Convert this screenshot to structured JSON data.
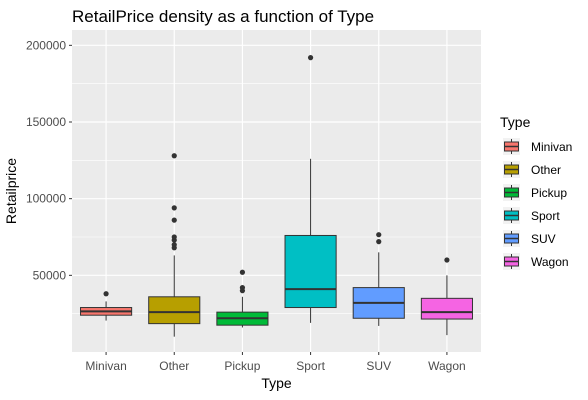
{
  "chart_data": {
    "type": "box",
    "title": "RetailPrice density as a function of Type",
    "xlabel": "Type",
    "ylabel": "Retailprice",
    "ylim": [
      0,
      210000
    ],
    "y_ticks": [
      50000,
      100000,
      150000,
      200000
    ],
    "categories": [
      "Minivan",
      "Other",
      "Pickup",
      "Sport",
      "SUV",
      "Wagon"
    ],
    "legend": {
      "title": "Type",
      "position": "right"
    },
    "colors": {
      "Minivan": "#F8766D",
      "Other": "#B79F00",
      "Pickup": "#00BA38",
      "Sport": "#00BFC4",
      "SUV": "#619CFF",
      "Wagon": "#F564E3"
    },
    "boxes": [
      {
        "name": "Minivan",
        "whisker_low": 20500,
        "q1": 24000,
        "median": 26500,
        "q3": 29000,
        "whisker_high": 33000,
        "outliers": [
          38000
        ]
      },
      {
        "name": "Other",
        "whisker_low": 10000,
        "q1": 18500,
        "median": 26000,
        "q3": 36000,
        "whisker_high": 63000,
        "outliers": [
          68000,
          70000,
          73000,
          75000,
          86000,
          94000,
          128000
        ]
      },
      {
        "name": "Pickup",
        "whisker_low": 16000,
        "q1": 17500,
        "median": 22000,
        "q3": 26000,
        "whisker_high": 36000,
        "outliers": [
          40000,
          42000,
          52000
        ]
      },
      {
        "name": "Sport",
        "whisker_low": 19000,
        "q1": 29000,
        "median": 41000,
        "q3": 76000,
        "whisker_high": 126000,
        "outliers": [
          192000
        ]
      },
      {
        "name": "SUV",
        "whisker_low": 17000,
        "q1": 22000,
        "median": 32000,
        "q3": 42000,
        "whisker_high": 65000,
        "outliers": [
          72000,
          76500
        ]
      },
      {
        "name": "Wagon",
        "whisker_low": 11000,
        "q1": 21500,
        "median": 26000,
        "q3": 35000,
        "whisker_high": 50000,
        "outliers": [
          60000
        ]
      }
    ]
  }
}
